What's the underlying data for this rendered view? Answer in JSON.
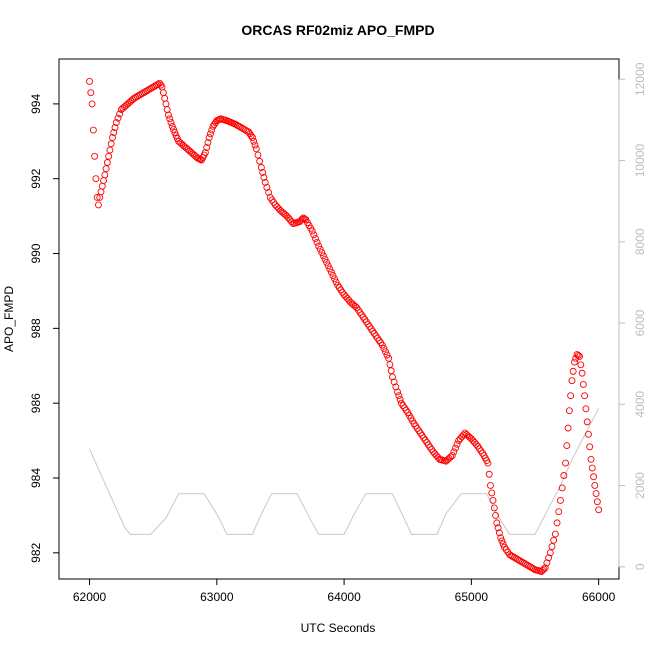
{
  "chart_data": {
    "type": "scatter",
    "title": "ORCAS RF02miz APO_FMPD",
    "xlabel": "UTC Seconds",
    "ylabel": "APO_FMPD",
    "xlim": [
      61760,
      66160
    ],
    "ylim": [
      981.3,
      995.2
    ],
    "y2lim": [
      -300,
      12500
    ],
    "x_ticks": [
      "62000",
      "63000",
      "64000",
      "65000",
      "66000"
    ],
    "y_ticks": [
      "982",
      "984",
      "986",
      "988",
      "990",
      "992",
      "994"
    ],
    "y2_ticks": [
      "0",
      "2000",
      "4000",
      "6000",
      "8000",
      "10000",
      "12000"
    ],
    "colors": {
      "primary": "#ff0000",
      "secondary": "#c8c8c8",
      "right_axis": "#bdbdbd"
    },
    "series": [
      {
        "axis": "left",
        "marker": "open-circle",
        "color": "#ff0000",
        "points": [
          [
            62000,
            994.6
          ],
          [
            62020,
            994.0
          ],
          [
            62030,
            993.3
          ],
          [
            62040,
            992.6
          ],
          [
            62050,
            992.0
          ],
          [
            62060,
            991.5
          ],
          [
            62070,
            991.3
          ],
          [
            62080,
            991.5
          ],
          [
            62100,
            991.8
          ],
          [
            62120,
            992.1
          ],
          [
            62150,
            992.6
          ],
          [
            62180,
            993.1
          ],
          [
            62210,
            993.5
          ],
          [
            62250,
            993.85
          ],
          [
            62300,
            994.0
          ],
          [
            62350,
            994.15
          ],
          [
            62400,
            994.25
          ],
          [
            62450,
            994.35
          ],
          [
            62500,
            994.45
          ],
          [
            62550,
            994.55
          ],
          [
            62570,
            994.45
          ],
          [
            62600,
            994.0
          ],
          [
            62620,
            993.7
          ],
          [
            62650,
            993.4
          ],
          [
            62680,
            993.15
          ],
          [
            62700,
            993.0
          ],
          [
            62750,
            992.85
          ],
          [
            62800,
            992.7
          ],
          [
            62850,
            992.55
          ],
          [
            62880,
            992.5
          ],
          [
            62910,
            992.7
          ],
          [
            62940,
            993.1
          ],
          [
            62970,
            993.4
          ],
          [
            63000,
            993.55
          ],
          [
            63030,
            993.6
          ],
          [
            63080,
            993.55
          ],
          [
            63150,
            993.45
          ],
          [
            63200,
            993.35
          ],
          [
            63250,
            993.25
          ],
          [
            63280,
            993.1
          ],
          [
            63310,
            992.8
          ],
          [
            63350,
            992.3
          ],
          [
            63380,
            991.9
          ],
          [
            63420,
            991.5
          ],
          [
            63460,
            991.3
          ],
          [
            63500,
            991.15
          ],
          [
            63550,
            991.0
          ],
          [
            63600,
            990.8
          ],
          [
            63650,
            990.85
          ],
          [
            63680,
            990.95
          ],
          [
            63700,
            990.9
          ],
          [
            63750,
            990.6
          ],
          [
            63800,
            990.2
          ],
          [
            63850,
            989.85
          ],
          [
            63900,
            989.5
          ],
          [
            63950,
            989.15
          ],
          [
            64000,
            988.9
          ],
          [
            64050,
            988.7
          ],
          [
            64100,
            988.55
          ],
          [
            64150,
            988.3
          ],
          [
            64200,
            988.05
          ],
          [
            64250,
            987.8
          ],
          [
            64300,
            987.55
          ],
          [
            64350,
            987.2
          ],
          [
            64380,
            986.7
          ],
          [
            64420,
            986.3
          ],
          [
            64450,
            986.0
          ],
          [
            64500,
            985.75
          ],
          [
            64550,
            985.45
          ],
          [
            64600,
            985.2
          ],
          [
            64650,
            984.95
          ],
          [
            64700,
            984.7
          ],
          [
            64750,
            984.5
          ],
          [
            64800,
            984.45
          ],
          [
            64850,
            984.6
          ],
          [
            64900,
            985.0
          ],
          [
            64950,
            985.2
          ],
          [
            65000,
            985.05
          ],
          [
            65050,
            984.85
          ],
          [
            65100,
            984.6
          ],
          [
            65130,
            984.4
          ],
          [
            65150,
            983.8
          ],
          [
            65180,
            983.2
          ],
          [
            65200,
            982.8
          ],
          [
            65230,
            982.4
          ],
          [
            65260,
            982.15
          ],
          [
            65300,
            981.95
          ],
          [
            65350,
            981.85
          ],
          [
            65400,
            981.75
          ],
          [
            65450,
            981.65
          ],
          [
            65500,
            981.55
          ],
          [
            65550,
            981.5
          ],
          [
            65580,
            981.6
          ],
          [
            65620,
            982.0
          ],
          [
            65660,
            982.5
          ],
          [
            65700,
            983.4
          ],
          [
            65740,
            984.4
          ],
          [
            65770,
            985.8
          ],
          [
            65790,
            986.6
          ],
          [
            65810,
            987.1
          ],
          [
            65830,
            987.3
          ],
          [
            65850,
            987.25
          ],
          [
            65870,
            986.8
          ],
          [
            65890,
            986.2
          ],
          [
            65910,
            985.5
          ],
          [
            65940,
            984.5
          ],
          [
            65970,
            983.8
          ],
          [
            66000,
            983.15
          ]
        ]
      },
      {
        "axis": "right",
        "marker": "line",
        "color": "#c8c8c8",
        "points": [
          [
            62000,
            2900
          ],
          [
            62100,
            2200
          ],
          [
            62200,
            1500
          ],
          [
            62280,
            950
          ],
          [
            62320,
            800
          ],
          [
            62480,
            800
          ],
          [
            62600,
            1200
          ],
          [
            62700,
            1800
          ],
          [
            62900,
            1800
          ],
          [
            63000,
            1300
          ],
          [
            63080,
            800
          ],
          [
            63280,
            800
          ],
          [
            63350,
            1300
          ],
          [
            63430,
            1800
          ],
          [
            63630,
            1800
          ],
          [
            63730,
            1200
          ],
          [
            63800,
            800
          ],
          [
            64000,
            800
          ],
          [
            64080,
            1300
          ],
          [
            64170,
            1800
          ],
          [
            64380,
            1800
          ],
          [
            64470,
            1200
          ],
          [
            64530,
            800
          ],
          [
            64730,
            800
          ],
          [
            64800,
            1300
          ],
          [
            64920,
            1800
          ],
          [
            65120,
            1800
          ],
          [
            65200,
            1300
          ],
          [
            65300,
            800
          ],
          [
            65500,
            800
          ],
          [
            65600,
            1400
          ],
          [
            65700,
            2000
          ],
          [
            65800,
            2700
          ],
          [
            65900,
            3300
          ],
          [
            66000,
            3900
          ]
        ]
      }
    ]
  }
}
